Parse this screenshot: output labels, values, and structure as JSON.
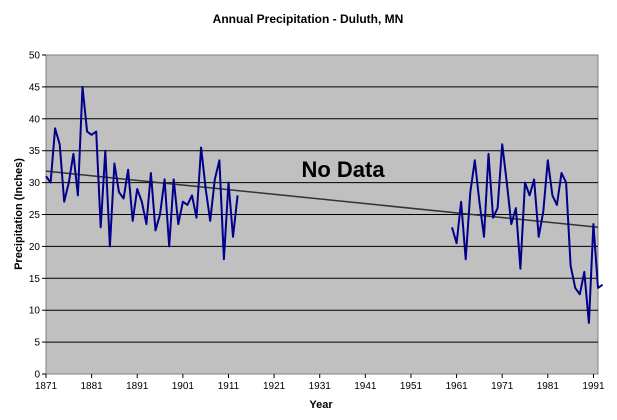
{
  "chart_data": {
    "type": "line",
    "title": "Annual Precipitation - Duluth, MN",
    "xlabel": "Year",
    "ylabel": "Precipitation (Inches)",
    "xlim": [
      1871,
      1992
    ],
    "ylim": [
      0,
      50
    ],
    "grid": true,
    "annotation": "No Data",
    "x_ticks": [
      "1871",
      "1881",
      "1891",
      "1901",
      "1911",
      "1921",
      "1931",
      "1941",
      "1951",
      "1961",
      "1971",
      "1981",
      "1991"
    ],
    "y_ticks": [
      "0",
      "5",
      "10",
      "15",
      "20",
      "25",
      "30",
      "35",
      "40",
      "45",
      "50"
    ],
    "colors": {
      "plot_background": "#c0c0c0",
      "series": "#00008b",
      "trend": "#333333",
      "grid": "#000000"
    },
    "series": [
      {
        "segments": [
          {
            "x": [
              1871,
              1872,
              1873,
              1874,
              1875,
              1876,
              1877,
              1878,
              1879,
              1880,
              1881,
              1882,
              1883,
              1884,
              1885,
              1886,
              1887,
              1888,
              1889,
              1890,
              1891,
              1892,
              1893,
              1894,
              1895,
              1896,
              1897,
              1898,
              1899,
              1900,
              1901,
              1902,
              1903,
              1904,
              1905,
              1906,
              1907,
              1908,
              1909,
              1910,
              1911,
              1912,
              1913
            ],
            "y": [
              31,
              30,
              38.5,
              36,
              27,
              30,
              34.5,
              28,
              45,
              38,
              37.5,
              38,
              23,
              35,
              20,
              33,
              28.5,
              27.5,
              32,
              24,
              29,
              27,
              23.5,
              31.5,
              22.5,
              25,
              30.5,
              20,
              30.5,
              23.5,
              27,
              26.5,
              28,
              24.5,
              35.5,
              29,
              24,
              30.5,
              33.5,
              18,
              30,
              21.5,
              28
            ]
          },
          {
            "x": [
              1960,
              1961,
              1962,
              1963,
              1964,
              1965,
              1966,
              1967,
              1968,
              1969,
              1970,
              1971,
              1972,
              1973,
              1974,
              1975,
              1976,
              1977,
              1978,
              1979,
              1980,
              1981,
              1982,
              1983,
              1984,
              1985,
              1986,
              1987,
              1988,
              1989,
              1990,
              1991,
              1992,
              1993
            ],
            "y": [
              23,
              20.5,
              27,
              18,
              28.5,
              33.5,
              27,
              21.5,
              34.5,
              24.5,
              26,
              36,
              30,
              23.5,
              26,
              16.5,
              30,
              28,
              30.5,
              21.5,
              25.5,
              33.5,
              28,
              26.5,
              31.5,
              30,
              17,
              13.5,
              12.5,
              16,
              8,
              23.5,
              13.5,
              14
            ]
          }
        ]
      },
      {
        "trend": true,
        "x": [
          1871,
          1992
        ],
        "y": [
          31.8,
          23
        ]
      }
    ]
  }
}
